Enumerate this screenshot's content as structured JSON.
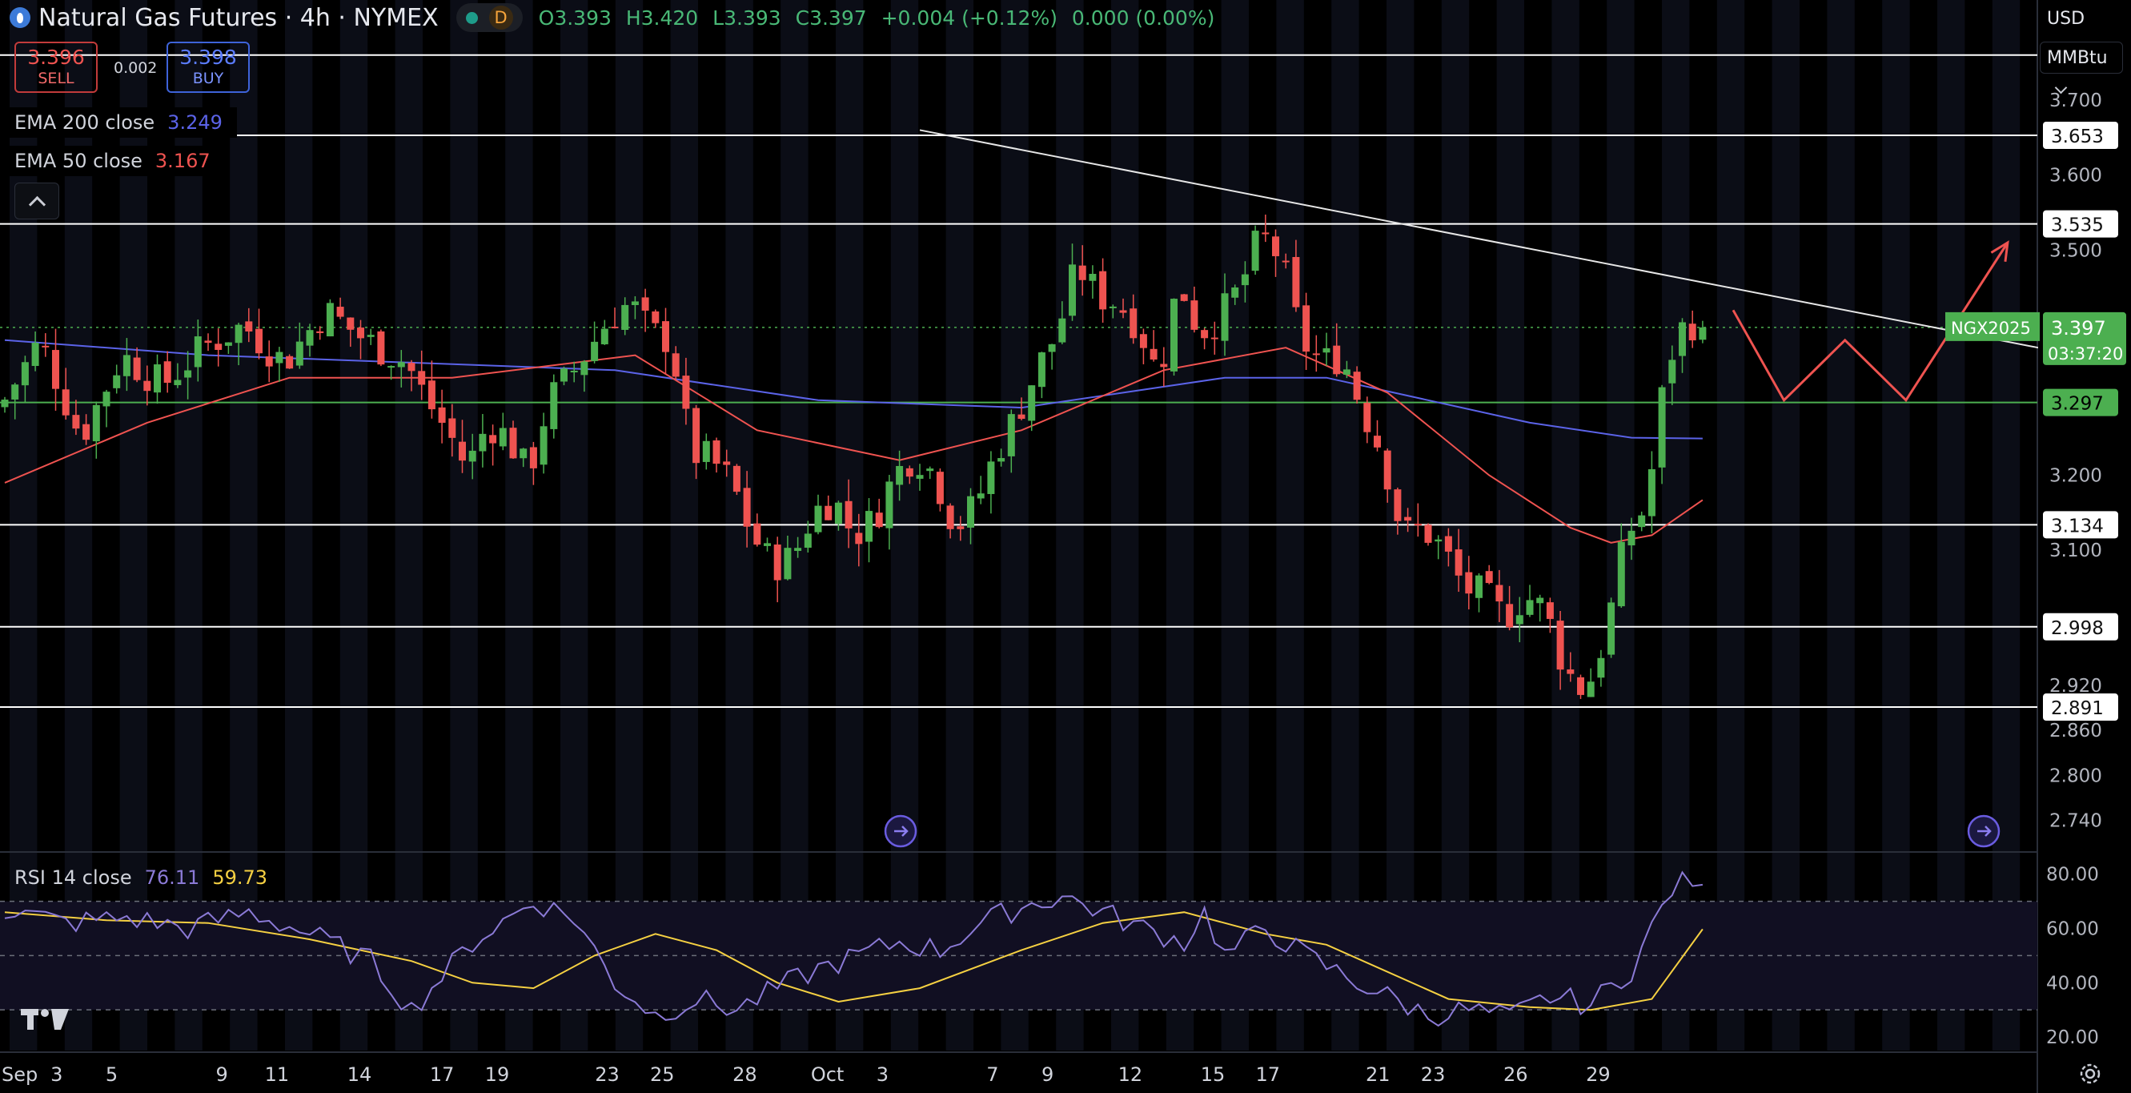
{
  "header": {
    "title": "Natural Gas Futures · 4h · NYMEX",
    "timeframe_badge": "D",
    "ohlc": {
      "open": "O3.393",
      "high": "H3.420",
      "low": "L3.393",
      "close": "C3.397",
      "change": "+0.004 (+0.12%)",
      "volume": "0.000 (0.00%)"
    }
  },
  "trade": {
    "sell_price": "3.396",
    "sell_label": "SELL",
    "spread": "0.002",
    "buy_price": "3.398",
    "buy_label": "BUY"
  },
  "indicators": {
    "ema200": {
      "label": "EMA 200 close",
      "value": "3.249",
      "color": "#5b63e8"
    },
    "ema50": {
      "label": "EMA 50 close",
      "value": "3.167",
      "color": "#ef5350"
    }
  },
  "rsi": {
    "label": "RSI 14 close",
    "value": "76.11",
    "ma_value": "59.73",
    "color": "#8b7ad6",
    "ma_color": "#f5d042"
  },
  "axis": {
    "currency": "USD",
    "unit": "MMBtu"
  },
  "colors": {
    "up": "#4caf50",
    "down": "#ef5350",
    "last_price": "#4caf50",
    "level_lines": "#ffffff",
    "projection": "#ef5350"
  },
  "chart_data": {
    "type": "candlestick",
    "x_tick_labels": [
      "Sep",
      "3",
      "5",
      "9",
      "11",
      "14",
      "17",
      "19",
      "23",
      "25",
      "28",
      "Oct",
      "3",
      "7",
      "9",
      "12",
      "15",
      "17",
      "21",
      "23",
      "26",
      "29"
    ],
    "x_axis_dates": [
      "2024-09-01",
      "2024-09-03",
      "2024-09-05",
      "2024-09-09",
      "2024-09-11",
      "2024-09-14",
      "2024-09-17",
      "2024-09-19",
      "2024-09-23",
      "2024-09-25",
      "2024-09-28",
      "2024-10-01",
      "2024-10-03",
      "2024-10-07",
      "2024-10-09",
      "2024-10-12",
      "2024-10-15",
      "2024-10-17",
      "2024-10-21",
      "2024-10-23",
      "2024-10-26",
      "2024-10-29"
    ],
    "y_ticks": [
      3.7,
      3.6,
      3.5,
      3.2,
      3.1,
      2.92,
      2.86,
      2.8,
      2.74
    ],
    "y_tick_labels": [
      "3.700",
      "3.600",
      "3.500",
      "3.200",
      "3.100",
      "2.920",
      "2.860",
      "2.800",
      "2.740"
    ],
    "ylim": [
      2.7,
      3.78
    ],
    "horizontal_levels": [
      {
        "value": 3.653,
        "label": "3.653"
      },
      {
        "value": 3.535,
        "label": "3.535"
      },
      {
        "value": 3.297,
        "label": "3.297"
      },
      {
        "value": 3.134,
        "label": "3.134"
      },
      {
        "value": 2.998,
        "label": "2.998"
      },
      {
        "value": 2.891,
        "label": "2.891"
      }
    ],
    "top_level_unlabeled": 3.76,
    "last_price": {
      "value": 3.397,
      "label": "3.397",
      "symbol": "NGX2025",
      "countdown": "03:37:20"
    },
    "price_path": [
      [
        0,
        3.29
      ],
      [
        4,
        3.38
      ],
      [
        8,
        3.25
      ],
      [
        12,
        3.36
      ],
      [
        16,
        3.32
      ],
      [
        20,
        3.37
      ],
      [
        24,
        3.4
      ],
      [
        28,
        3.35
      ],
      [
        32,
        3.42
      ],
      [
        36,
        3.38
      ],
      [
        40,
        3.35
      ],
      [
        42,
        3.3
      ],
      [
        44,
        3.26
      ],
      [
        46,
        3.21
      ],
      [
        48,
        3.27
      ],
      [
        50,
        3.25
      ],
      [
        52,
        3.2
      ],
      [
        54,
        3.3
      ],
      [
        56,
        3.33
      ],
      [
        58,
        3.37
      ],
      [
        60,
        3.41
      ],
      [
        62,
        3.43
      ],
      [
        64,
        3.39
      ],
      [
        66,
        3.38
      ],
      [
        68,
        3.23
      ],
      [
        70,
        3.22
      ],
      [
        72,
        3.19
      ],
      [
        74,
        3.12
      ],
      [
        76,
        3.08
      ],
      [
        78,
        3.09
      ],
      [
        80,
        3.15
      ],
      [
        82,
        3.17
      ],
      [
        84,
        3.12
      ],
      [
        86,
        3.14
      ],
      [
        88,
        3.2
      ],
      [
        90,
        3.23
      ],
      [
        92,
        3.2
      ],
      [
        94,
        3.13
      ],
      [
        96,
        3.16
      ],
      [
        98,
        3.23
      ],
      [
        100,
        3.28
      ],
      [
        102,
        3.34
      ],
      [
        104,
        3.39
      ],
      [
        106,
        3.48
      ],
      [
        108,
        3.44
      ],
      [
        110,
        3.43
      ],
      [
        112,
        3.4
      ],
      [
        114,
        3.33
      ],
      [
        116,
        3.46
      ],
      [
        118,
        3.39
      ],
      [
        120,
        3.41
      ],
      [
        122,
        3.45
      ],
      [
        124,
        3.52
      ],
      [
        126,
        3.49
      ],
      [
        128,
        3.38
      ],
      [
        130,
        3.35
      ],
      [
        132,
        3.36
      ],
      [
        134,
        3.29
      ],
      [
        136,
        3.23
      ],
      [
        138,
        3.12
      ],
      [
        140,
        3.13
      ],
      [
        142,
        3.1
      ],
      [
        144,
        3.05
      ],
      [
        146,
        3.04
      ],
      [
        148,
        3.01
      ],
      [
        150,
        3.04
      ],
      [
        152,
        3.02
      ],
      [
        154,
        2.94
      ],
      [
        156,
        2.91
      ],
      [
        158,
        2.99
      ],
      [
        160,
        3.12
      ],
      [
        162,
        3.16
      ],
      [
        164,
        3.35
      ],
      [
        166,
        3.41
      ],
      [
        167,
        3.397
      ]
    ],
    "ema200": [
      [
        0,
        3.38
      ],
      [
        20,
        3.36
      ],
      [
        40,
        3.35
      ],
      [
        60,
        3.34
      ],
      [
        80,
        3.3
      ],
      [
        100,
        3.29
      ],
      [
        110,
        3.31
      ],
      [
        120,
        3.33
      ],
      [
        130,
        3.33
      ],
      [
        140,
        3.3
      ],
      [
        150,
        3.27
      ],
      [
        160,
        3.25
      ],
      [
        167,
        3.249
      ]
    ],
    "ema50": [
      [
        0,
        3.19
      ],
      [
        14,
        3.27
      ],
      [
        28,
        3.33
      ],
      [
        44,
        3.33
      ],
      [
        62,
        3.36
      ],
      [
        74,
        3.26
      ],
      [
        88,
        3.22
      ],
      [
        100,
        3.26
      ],
      [
        114,
        3.34
      ],
      [
        126,
        3.37
      ],
      [
        136,
        3.31
      ],
      [
        146,
        3.2
      ],
      [
        154,
        3.13
      ],
      [
        158,
        3.11
      ],
      [
        162,
        3.12
      ],
      [
        167,
        3.167
      ]
    ],
    "trendline": [
      [
        90,
        3.66
      ],
      [
        200,
        3.37
      ]
    ],
    "projection": [
      [
        170,
        3.42
      ],
      [
        175,
        3.3
      ],
      [
        181,
        3.38
      ],
      [
        187,
        3.3
      ],
      [
        197,
        3.51
      ]
    ],
    "rsi": {
      "ylim": [
        15,
        87
      ],
      "y_ticks": [
        80,
        60,
        40,
        20
      ],
      "y_tick_labels": [
        "80.00",
        "60.00",
        "40.00",
        "20.00"
      ],
      "bands": [
        70,
        50,
        30
      ],
      "rsi_path": [
        [
          0,
          67
        ],
        [
          6,
          62
        ],
        [
          12,
          64
        ],
        [
          18,
          60
        ],
        [
          24,
          66
        ],
        [
          30,
          58
        ],
        [
          36,
          48
        ],
        [
          40,
          30
        ],
        [
          46,
          55
        ],
        [
          52,
          70
        ],
        [
          56,
          64
        ],
        [
          60,
          40
        ],
        [
          64,
          28
        ],
        [
          68,
          34
        ],
        [
          72,
          30
        ],
        [
          76,
          38
        ],
        [
          80,
          45
        ],
        [
          84,
          50
        ],
        [
          88,
          55
        ],
        [
          92,
          52
        ],
        [
          96,
          62
        ],
        [
          100,
          68
        ],
        [
          104,
          72
        ],
        [
          108,
          66
        ],
        [
          112,
          60
        ],
        [
          116,
          55
        ],
        [
          118,
          66
        ],
        [
          120,
          50
        ],
        [
          124,
          60
        ],
        [
          128,
          50
        ],
        [
          132,
          42
        ],
        [
          136,
          35
        ],
        [
          140,
          28
        ],
        [
          144,
          30
        ],
        [
          148,
          27
        ],
        [
          152,
          35
        ],
        [
          156,
          32
        ],
        [
          160,
          45
        ],
        [
          164,
          75
        ],
        [
          166,
          78
        ],
        [
          167,
          76.11
        ]
      ],
      "ma_path": [
        [
          0,
          66
        ],
        [
          10,
          63
        ],
        [
          20,
          62
        ],
        [
          30,
          56
        ],
        [
          40,
          48
        ],
        [
          46,
          40
        ],
        [
          52,
          38
        ],
        [
          58,
          50
        ],
        [
          64,
          58
        ],
        [
          70,
          52
        ],
        [
          76,
          40
        ],
        [
          82,
          33
        ],
        [
          90,
          38
        ],
        [
          100,
          52
        ],
        [
          108,
          62
        ],
        [
          116,
          66
        ],
        [
          124,
          58
        ],
        [
          130,
          54
        ],
        [
          136,
          44
        ],
        [
          142,
          34
        ],
        [
          150,
          31
        ],
        [
          156,
          30
        ],
        [
          162,
          34
        ],
        [
          167,
          59.73
        ]
      ]
    }
  }
}
